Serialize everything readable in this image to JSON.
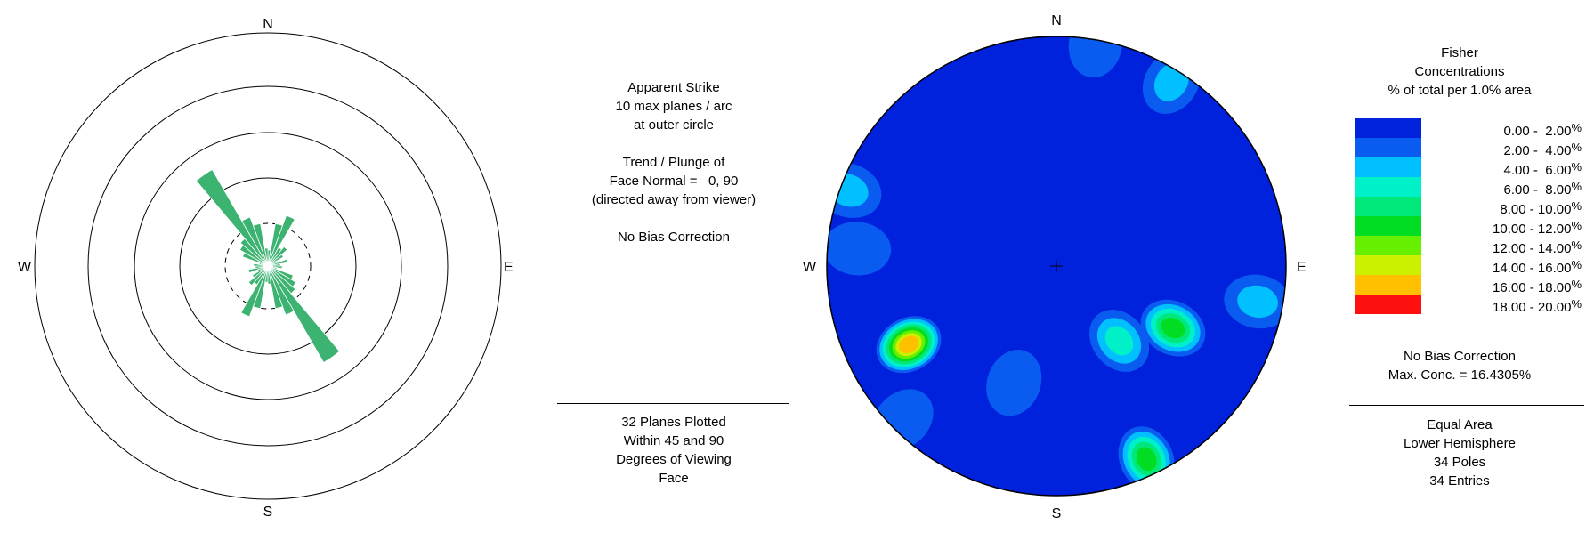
{
  "rose_panel": {
    "compass": {
      "n": "N",
      "e": "E",
      "s": "S",
      "w": "W"
    },
    "info_lines": [
      "Apparent Strike",
      "10 max planes / arc",
      "at outer circle",
      "",
      "Trend / Plunge of",
      "Face Normal =   0, 90",
      "(directed away from viewer)",
      "",
      "No Bias Correction"
    ],
    "footer_lines": [
      "32 Planes Plotted",
      "Within 45 and 90",
      "Degrees of Viewing",
      "Face"
    ],
    "bar_color": "#3cb371"
  },
  "stereonet_panel": {
    "compass": {
      "n": "N",
      "e": "E",
      "s": "S",
      "w": "W"
    },
    "legend_title": [
      "Fisher",
      "Concentrations",
      "% of total per 1.0% area"
    ],
    "legend": [
      {
        "range": "0.00 -  2.00",
        "unit": "%",
        "color": "#0022dd"
      },
      {
        "range": "2.00 -  4.00",
        "unit": "%",
        "color": "#0a5cf0"
      },
      {
        "range": "4.00 -  6.00",
        "unit": "%",
        "color": "#00c0ff"
      },
      {
        "range": "6.00 -  8.00",
        "unit": "%",
        "color": "#00f0c8"
      },
      {
        "range": "8.00 - 10.00",
        "unit": "%",
        "color": "#00e87a"
      },
      {
        "range": "10.00 - 12.00",
        "unit": "%",
        "color": "#00dd22"
      },
      {
        "range": "12.00 - 14.00",
        "unit": "%",
        "color": "#66f000"
      },
      {
        "range": "14.00 - 16.00",
        "unit": "%",
        "color": "#ccf000"
      },
      {
        "range": "16.00 - 18.00",
        "unit": "%",
        "color": "#ffc000"
      },
      {
        "range": "18.00 - 20.00",
        "unit": "%",
        "color": "#ff1010"
      }
    ],
    "stats_lines": [
      "No Bias Correction",
      "Max. Conc. = 16.4305%"
    ],
    "footer_lines": [
      "Equal Area",
      "Lower Hemisphere",
      "34 Poles",
      "34 Entries"
    ]
  },
  "chart_data": [
    {
      "type": "rose",
      "title": "Apparent Strike",
      "scale_max": 10,
      "rings": 4,
      "note": "10 max planes / arc at outer circle",
      "bin_width_deg": 10,
      "petals": [
        {
          "azimuth": 5,
          "count": 0.9
        },
        {
          "azimuth": 15,
          "count": 2.4
        },
        {
          "azimuth": 25,
          "count": 3.0
        },
        {
          "azimuth": 35,
          "count": 1.2
        },
        {
          "azimuth": 45,
          "count": 1.4
        },
        {
          "azimuth": 55,
          "count": 1.0
        },
        {
          "azimuth": 65,
          "count": 0.6
        },
        {
          "azimuth": 75,
          "count": 1.1
        },
        {
          "azimuth": 85,
          "count": 0.7
        },
        {
          "azimuth": 95,
          "count": 0.8
        },
        {
          "azimuth": 105,
          "count": 0.5
        },
        {
          "azimuth": 115,
          "count": 1.5
        },
        {
          "azimuth": 125,
          "count": 1.8
        },
        {
          "azimuth": 135,
          "count": 2.0
        },
        {
          "azimuth": 145,
          "count": 6.2
        },
        {
          "azimuth": 155,
          "count": 2.9
        },
        {
          "azimuth": 165,
          "count": 2.4
        },
        {
          "azimuth": 175,
          "count": 1.0
        }
      ]
    },
    {
      "type": "heatmap",
      "title": "Fisher Concentrations",
      "projection": "Equal Area",
      "hemisphere": "Lower Hemisphere",
      "max_concentration": 16.4305,
      "bins": [
        0,
        2,
        4,
        6,
        8,
        10,
        12,
        14,
        16,
        18,
        20
      ],
      "hotspots": [
        {
          "trend": 242,
          "plunge": 28,
          "peak": 16.4
        },
        {
          "trend": 118,
          "plunge": 42,
          "peak": 11.0
        },
        {
          "trend": 155,
          "plunge": 8,
          "peak": 11.0
        },
        {
          "trend": 140,
          "plunge": 55,
          "peak": 6.5
        },
        {
          "trend": 100,
          "plunge": 12,
          "peak": 5.5
        },
        {
          "trend": 32,
          "plunge": 6,
          "peak": 5.0
        },
        {
          "trend": 275,
          "plunge": 14,
          "peak": 3.0
        },
        {
          "trend": 290,
          "plunge": 4,
          "peak": 4.5
        },
        {
          "trend": 200,
          "plunge": 45,
          "peak": 3.0
        },
        {
          "trend": 225,
          "plunge": 6,
          "peak": 3.0
        },
        {
          "trend": 10,
          "plunge": 2,
          "peak": 3.0
        }
      ]
    }
  ]
}
